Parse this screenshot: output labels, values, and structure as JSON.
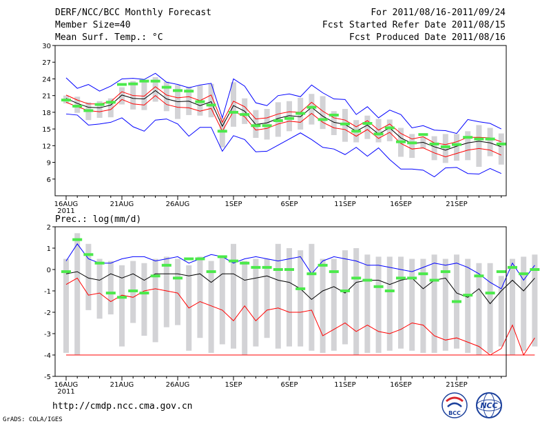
{
  "header": {
    "title": "DERF/NCC/BCC Monthly Forecast",
    "member_size": "Member Size=40",
    "variable": "Mean Surf. Temp.: °C",
    "period": "For 2011/08/16-2011/09/24",
    "started": "Fcst Started Refer Date 2011/08/15",
    "produced": "Fcst Produced Date 2011/08/16"
  },
  "footer": {
    "url": "http://cmdp.ncc.cma.gov.cn",
    "credit": "GrADS: COLA/IGES"
  },
  "logos": {
    "bcc_text": "BCC",
    "ncc_text": "NCC"
  },
  "colors": {
    "envelope": "#0000ff",
    "lower": "#ff0000",
    "mean": "#000000",
    "box": "#d3d3d6",
    "obs": "#4be94b"
  },
  "chart_data": [
    {
      "type": "box-ensemble",
      "title": "Mean Surf. Temp.: °C",
      "unit": "°C",
      "ylim": [
        3,
        30
      ],
      "yticks": [
        30,
        27,
        24,
        21,
        18,
        15,
        12,
        9,
        6
      ],
      "xlabels": [
        "16AUG",
        "21AUG",
        "26AUG",
        "1SEP",
        "6SEP",
        "11SEP",
        "16SEP",
        "21SEP"
      ],
      "xlabel_year": "2011",
      "series": {
        "max": [
          24.2,
          22.3,
          23.0,
          21.8,
          22.7,
          24.0,
          24.1,
          23.9,
          25.0,
          23.4,
          23.0,
          22.4,
          22.9,
          23.2,
          17.0,
          24.0,
          22.7,
          19.7,
          19.2,
          21.0,
          21.3,
          20.8,
          22.9,
          21.5,
          20.4,
          20.3,
          17.6,
          19.0,
          17.0,
          18.4,
          17.6,
          15.2,
          15.6,
          14.8,
          14.7,
          14.2,
          16.7,
          16.3,
          16.0,
          15.0
        ],
        "upper": [
          21.1,
          20.2,
          19.5,
          19.5,
          19.9,
          21.7,
          21.0,
          20.9,
          22.6,
          21.1,
          20.6,
          20.8,
          20.1,
          21.1,
          16.2,
          20.0,
          19.0,
          16.8,
          17.0,
          17.7,
          18.1,
          18.0,
          19.8,
          18.2,
          17.0,
          16.6,
          15.4,
          16.5,
          14.8,
          15.9,
          14.2,
          13.2,
          13.6,
          12.5,
          12.2,
          12.7,
          13.5,
          13.5,
          13.4,
          12.7
        ],
        "mean": [
          20.5,
          19.6,
          18.9,
          18.8,
          19.3,
          21.1,
          20.5,
          20.4,
          21.9,
          20.4,
          19.9,
          20.0,
          19.2,
          19.9,
          15.5,
          19.2,
          18.2,
          15.8,
          16.1,
          16.9,
          17.4,
          17.2,
          18.9,
          17.3,
          16.2,
          15.8,
          14.6,
          15.7,
          14.1,
          15.2,
          13.4,
          12.4,
          12.6,
          11.8,
          11.2,
          11.9,
          12.5,
          12.8,
          12.5,
          11.8
        ],
        "lower": [
          19.8,
          19.0,
          18.3,
          18.1,
          18.5,
          20.3,
          19.5,
          19.3,
          21.0,
          19.4,
          18.9,
          18.8,
          18.2,
          18.7,
          14.6,
          18.2,
          17.2,
          14.8,
          15.1,
          15.9,
          16.4,
          16.2,
          17.8,
          16.2,
          15.2,
          14.9,
          13.7,
          14.9,
          13.3,
          14.4,
          12.4,
          11.4,
          11.6,
          10.7,
          10.0,
          10.6,
          11.2,
          11.5,
          11.2,
          10.3
        ],
        "min": [
          17.7,
          17.5,
          15.7,
          15.9,
          16.2,
          17.0,
          15.4,
          14.6,
          16.6,
          16.8,
          15.9,
          13.7,
          15.3,
          15.3,
          11.0,
          13.8,
          13.1,
          10.9,
          11.0,
          12.1,
          13.2,
          14.3,
          13.1,
          11.7,
          11.4,
          10.4,
          11.7,
          10.1,
          11.6,
          9.5,
          7.8,
          7.8,
          7.6,
          6.4,
          8.0,
          8.1,
          7.0,
          6.9,
          7.9,
          7.0
        ],
        "box_top": [
          21.0,
          20.8,
          19.8,
          20.0,
          20.5,
          22.5,
          23.6,
          23.8,
          24.3,
          23.5,
          22.9,
          22.6,
          22.8,
          23.1,
          17.0,
          23.4,
          20.5,
          18.4,
          18.6,
          19.8,
          20.0,
          20.6,
          21.3,
          20.9,
          18.2,
          18.6,
          16.6,
          17.4,
          16.8,
          16.7,
          15.2,
          14.1,
          13.6,
          13.7,
          14.1,
          14.1,
          14.6,
          15.7,
          15.2,
          14.2
        ],
        "box_bottom": [
          19.6,
          17.9,
          16.6,
          17.0,
          17.1,
          19.4,
          18.5,
          18.4,
          19.9,
          18.2,
          16.8,
          17.5,
          17.4,
          17.1,
          11.7,
          15.4,
          15.9,
          13.4,
          13.1,
          13.6,
          14.6,
          14.9,
          15.8,
          15.0,
          13.9,
          12.7,
          12.6,
          13.2,
          12.6,
          12.8,
          10.0,
          9.8,
          11.5,
          9.4,
          8.9,
          9.3,
          9.4,
          8.2,
          10.1,
          8.6
        ],
        "obs": [
          20.2,
          19.1,
          18.3,
          19.4,
          19.8,
          23.0,
          23.1,
          23.6,
          23.6,
          22.5,
          21.9,
          21.8,
          19.9,
          19.3,
          14.6,
          18.0,
          17.6,
          15.6,
          15.6,
          16.5,
          16.9,
          17.8,
          18.9,
          16.7,
          17.5,
          15.9,
          14.6,
          16.0,
          14.1,
          15.2,
          12.7,
          12.5,
          14.0,
          12.3,
          11.8,
          12.2,
          13.5,
          13.2,
          13.2,
          12.3
        ]
      }
    },
    {
      "type": "box-ensemble",
      "title": "Prec.: log(mm/d)",
      "unit": "log(mm/d)",
      "ylim": [
        -5,
        2
      ],
      "yticks": [
        2,
        1,
        0,
        -1,
        -2,
        -3,
        -4,
        -5
      ],
      "xlabels": [
        "16AUG",
        "21AUG",
        "26AUG",
        "1SEP",
        "6SEP",
        "11SEP",
        "16SEP",
        "21SEP"
      ],
      "xlabel_year": "2011",
      "series": {
        "max": [
          0.4,
          1.2,
          0.5,
          0.3,
          0.3,
          0.5,
          0.6,
          0.6,
          0.4,
          0.5,
          0.6,
          0.3,
          0.5,
          0.7,
          0.6,
          0.3,
          0.5,
          0.6,
          0.5,
          0.4,
          0.5,
          0.6,
          -0.2,
          0.4,
          0.6,
          0.5,
          0.4,
          0.2,
          0.2,
          0.1,
          0.0,
          -0.1,
          0.1,
          0.3,
          0.2,
          0.3,
          0.1,
          -0.2,
          -0.6,
          -0.9,
          0.3,
          -0.5,
          0.2
        ],
        "mean": [
          -0.2,
          -0.1,
          -0.4,
          -0.5,
          -0.2,
          -0.4,
          -0.2,
          -0.5,
          -0.2,
          -0.2,
          -0.2,
          -0.3,
          -0.2,
          -0.6,
          -0.2,
          -0.2,
          -0.5,
          -0.4,
          -0.3,
          -0.5,
          -0.6,
          -0.9,
          -1.4,
          -1.0,
          -0.8,
          -1.1,
          -0.6,
          -0.5,
          -0.5,
          -0.7,
          -0.5,
          -0.4,
          -0.9,
          -0.5,
          -0.4,
          -1.1,
          -1.3,
          -0.9,
          -1.6,
          -1.0,
          -0.5,
          -1.0,
          -0.4
        ],
        "lower": [
          -0.7,
          -0.4,
          -1.2,
          -1.1,
          -1.5,
          -1.2,
          -1.3,
          -1.0,
          -0.9,
          -1.0,
          -1.1,
          -1.8,
          -1.5,
          -1.7,
          -1.9,
          -2.4,
          -1.7,
          -2.4,
          -1.9,
          -1.8,
          -2.0,
          -2.0,
          -1.9,
          -3.1,
          -2.8,
          -2.5,
          -2.9,
          -2.6,
          -2.9,
          -3.0,
          -2.8,
          -2.5,
          -2.6,
          -3.1,
          -3.3,
          -3.2,
          -3.4,
          -3.6,
          -4.0,
          -3.7,
          -2.6,
          -4.0,
          -3.2
        ],
        "box_top": [
          0.5,
          1.7,
          1.2,
          0.5,
          0.4,
          0.2,
          0.4,
          0.3,
          0.5,
          0.6,
          0.5,
          0.2,
          0.6,
          0.4,
          0.6,
          1.2,
          0.4,
          0.5,
          0.5,
          1.2,
          1.0,
          0.9,
          1.2,
          0.5,
          0.5,
          0.9,
          1.0,
          0.7,
          0.6,
          0.6,
          0.6,
          0.5,
          0.5,
          0.7,
          0.5,
          0.7,
          0.5,
          0.3,
          0.3,
          -0.3,
          0.5,
          0.6,
          0.7
        ],
        "box_bottom": [
          -3.9,
          -4.0,
          -1.9,
          -2.3,
          -2.1,
          -3.6,
          -2.5,
          -3.1,
          -3.4,
          -2.7,
          -2.6,
          -3.8,
          -3.2,
          -3.9,
          -3.5,
          -3.7,
          -4.0,
          -3.6,
          -3.2,
          -3.7,
          -3.6,
          -3.6,
          -3.8,
          -3.9,
          -3.8,
          -3.5,
          -4.0,
          -3.9,
          -3.9,
          -3.8,
          -3.7,
          -3.8,
          -3.9,
          -3.9,
          -3.8,
          -3.7,
          -3.9,
          -4.0,
          -3.9,
          -3.6,
          -4.0,
          -3.8,
          -3.6
        ],
        "obs": [
          -0.1,
          1.4,
          0.7,
          0.3,
          -1.1,
          -1.3,
          -1.0,
          -1.1,
          -0.3,
          0.2,
          -0.4,
          0.5,
          0.5,
          -0.1,
          0.6,
          0.4,
          0.3,
          0.1,
          0.1,
          0.0,
          0.0,
          -0.9,
          -0.2,
          0.2,
          -0.1,
          -1.0,
          -0.4,
          -0.5,
          -0.8,
          -1.0,
          -0.4,
          -0.4,
          -0.2,
          -0.5,
          -0.1,
          -1.5,
          -1.2,
          -0.3,
          -1.1,
          -0.1,
          0.1,
          -0.2,
          0.0
        ],
        "floor": -4
      }
    }
  ]
}
